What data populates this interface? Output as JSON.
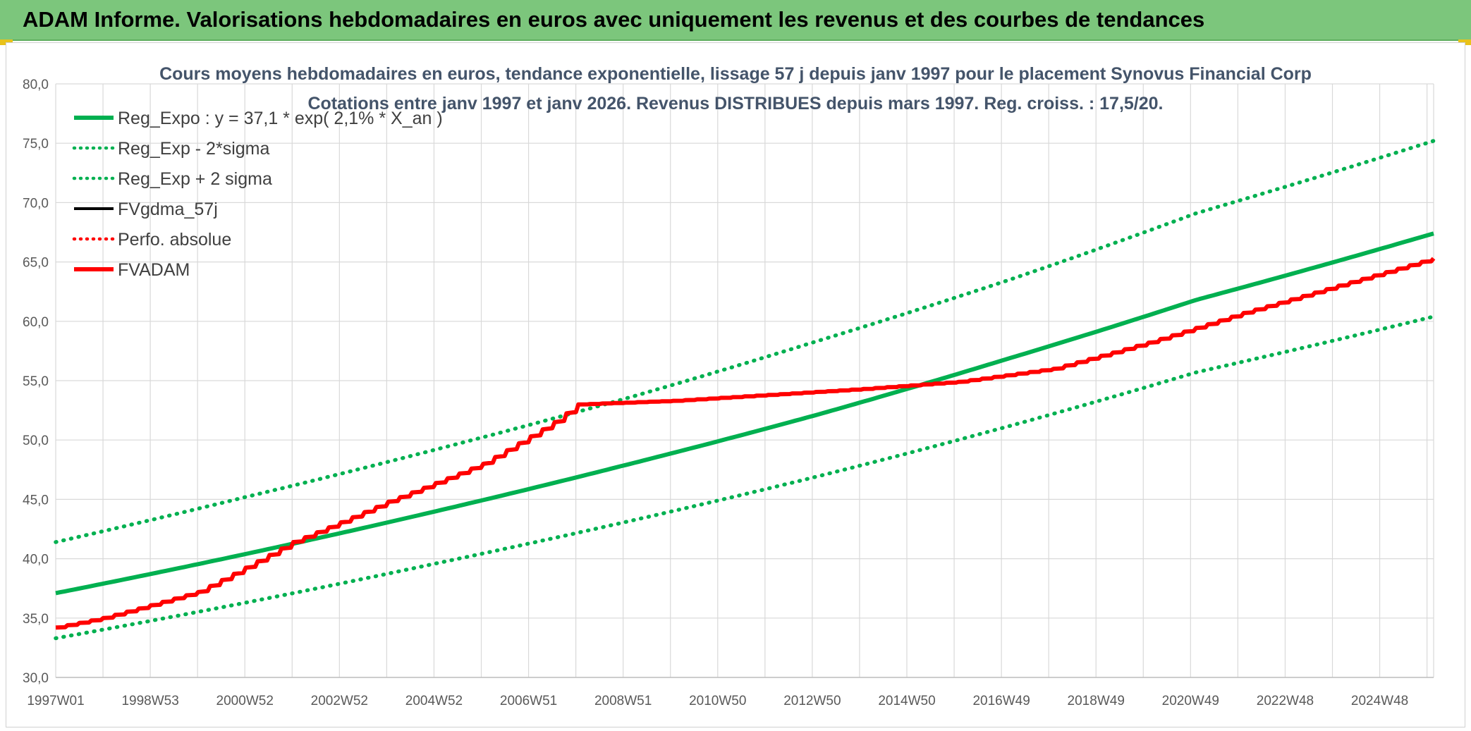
{
  "header": {
    "title": "ADAM Informe. Valorisations hebdomadaires en euros avec uniquement les revenus et des courbes de tendances"
  },
  "colors": {
    "header_bg": "#7cc67c",
    "green": "#00b050",
    "red": "#ff0000",
    "black": "#000000",
    "grid": "#d9d9d9"
  },
  "chart_data": {
    "type": "line",
    "title": "Cours moyens hebdomadaires en euros, tendance exponentielle, lissage 57 j depuis janv 1997 pour le placement Synovus Financial Corp",
    "subtitle": "Cotations entre janv 1997 et janv 2026. Revenus DISTRIBUES depuis mars 1997. Reg. croiss. : 17,5/20.",
    "xlabel": "",
    "ylabel": "",
    "x_tick_labels": [
      "1997W01",
      "1998W53",
      "2000W52",
      "2002W52",
      "2004W52",
      "2006W51",
      "2008W51",
      "2010W50",
      "2012W50",
      "2014W50",
      "2016W49",
      "2018W49",
      "2020W49",
      "2022W48",
      "2024W48"
    ],
    "x_range_years": [
      1997,
      2026
    ],
    "y_tick_labels": [
      "30,0",
      "35,0",
      "40,0",
      "45,0",
      "50,0",
      "55,0",
      "60,0",
      "65,0",
      "70,0",
      "75,0",
      "80,0"
    ],
    "ylim": [
      30,
      80
    ],
    "grid": true,
    "legend_position": "top-left",
    "series": [
      {
        "name": "Reg_Expo : y = 37,1 * exp( 2,1% *  X_an )",
        "style": "solid-thick",
        "color": "#00b050",
        "x": [
          1997,
          2001,
          2005,
          2009,
          2013,
          2017,
          2021,
          2026
        ],
        "y": [
          37.1,
          40.4,
          44.0,
          47.9,
          52.1,
          56.8,
          61.8,
          67.4
        ]
      },
      {
        "name": "Reg_Exp - 2*sigma",
        "style": "dotted",
        "color": "#00b050",
        "x": [
          1997,
          2001,
          2005,
          2009,
          2013,
          2017,
          2021,
          2026
        ],
        "y": [
          33.3,
          36.3,
          39.6,
          43.1,
          46.9,
          51.1,
          55.7,
          60.4
        ]
      },
      {
        "name": "Reg_Exp + 2 sigma",
        "style": "dotted",
        "color": "#00b050",
        "x": [
          1997,
          2001,
          2005,
          2009,
          2013,
          2017,
          2021,
          2026
        ],
        "y": [
          41.4,
          45.2,
          49.2,
          53.5,
          58.3,
          63.4,
          69.1,
          75.2
        ]
      },
      {
        "name": "FVgdma_57j",
        "style": "solid",
        "color": "#000000",
        "x": [],
        "y": []
      },
      {
        "name": "Perfo. absolue",
        "style": "dotted",
        "color": "#ff0000",
        "x": [],
        "y": []
      },
      {
        "name": "FVADAM",
        "style": "solid-thick",
        "color": "#ff0000",
        "x": [
          1997,
          1998,
          2000,
          2002,
          2004,
          2006,
          2007.5,
          2008,
          2010,
          2012,
          2014,
          2016,
          2018,
          2020,
          2022,
          2024,
          2026
        ],
        "y": [
          34.2,
          35.0,
          37.2,
          41.4,
          44.8,
          48.0,
          51.5,
          53.0,
          53.3,
          53.8,
          54.3,
          54.9,
          56.0,
          58.2,
          60.7,
          63.0,
          65.3
        ]
      }
    ]
  }
}
